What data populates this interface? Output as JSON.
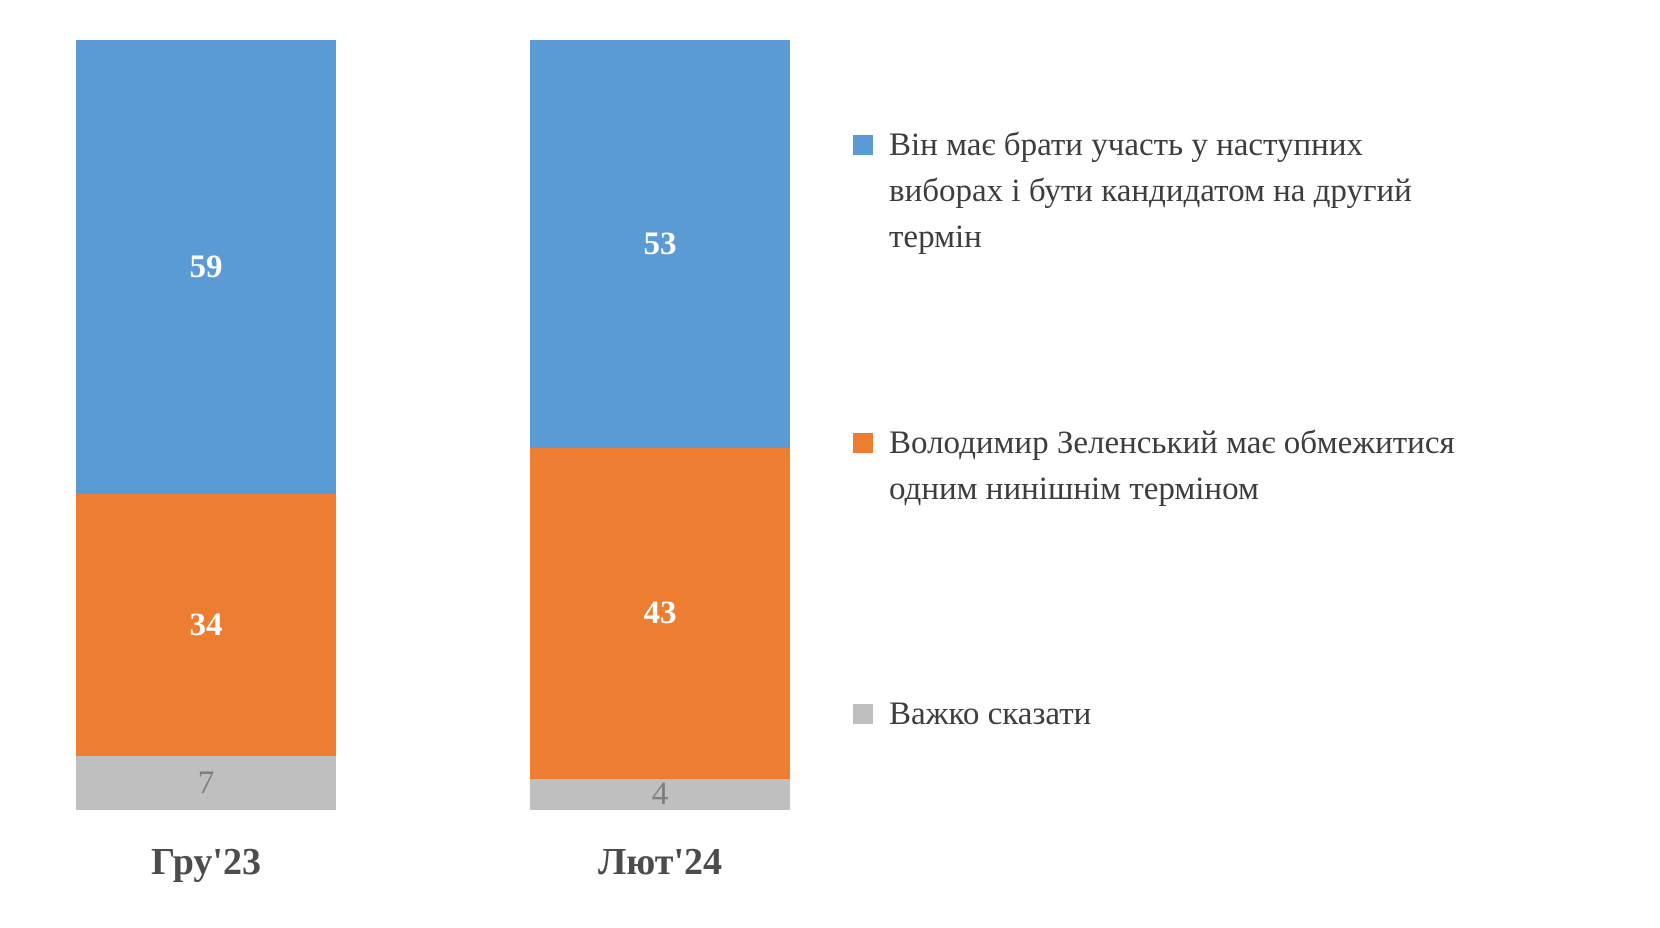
{
  "chart_data": {
    "type": "bar",
    "variant": "stacked-column",
    "title": "",
    "xlabel": "",
    "ylabel": "",
    "ylim": [
      0,
      100
    ],
    "grid": false,
    "legend_position": "right",
    "data_labels": true,
    "categories": [
      "Гру'23",
      "Лют'24"
    ],
    "series": [
      {
        "name": "Він має брати участь у наступних виборах і бути кандидатом на другий термін",
        "values": [
          59,
          53
        ],
        "color": "#5B9BD5",
        "label_color": "#FFFFFF",
        "label_bold": true
      },
      {
        "name": "Володимир Зеленський має обмежитися одним нинішнім терміном",
        "values": [
          34,
          43
        ],
        "color": "#ED7D31",
        "label_color": "#FFFFFF",
        "label_bold": true
      },
      {
        "name": "Важко сказати",
        "values": [
          7,
          4
        ],
        "color": "#BFBFBF",
        "label_color": "#7F7F7F",
        "label_bold": false
      }
    ]
  }
}
